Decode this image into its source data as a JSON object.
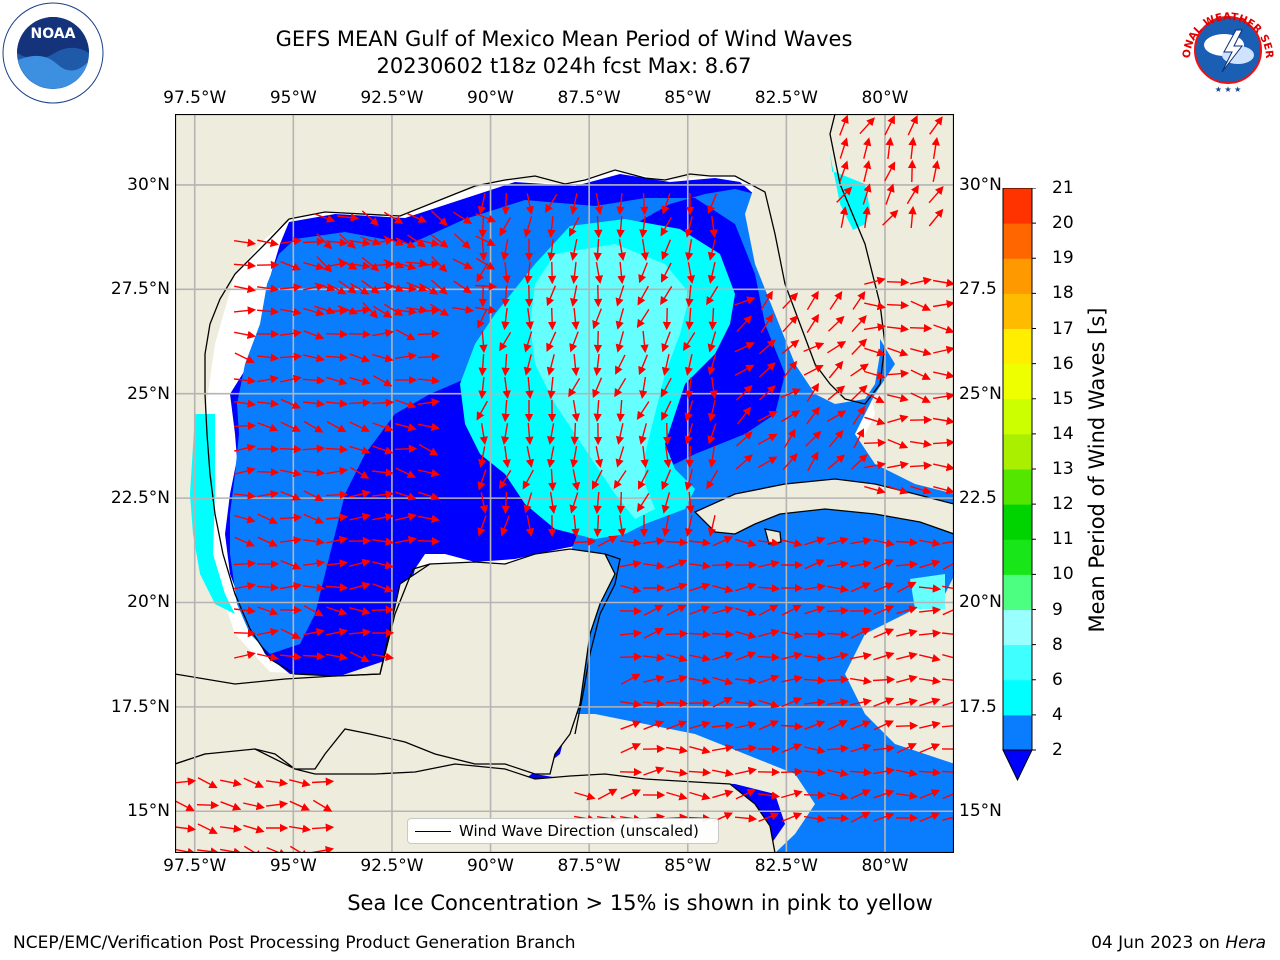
{
  "title_line1": "GEFS MEAN Gulf of Mexico Mean Period of Wind Waves",
  "title_line2": "20230602 t18z 024h fcst   Max: 8.67",
  "map": {
    "lon_ticks": [
      "97.5°W",
      "95°W",
      "92.5°W",
      "90°W",
      "87.5°W",
      "85°W",
      "82.5°W",
      "80°W"
    ],
    "lon_values": [
      -97.5,
      -95,
      -92.5,
      -90,
      -87.5,
      -85,
      -82.5,
      -80
    ],
    "lat_ticks": [
      "30°N",
      "27.5°N",
      "25°N",
      "22.5°N",
      "20°N",
      "17.5°N",
      "15°N"
    ],
    "lat_ticks_right": [
      "30°N",
      "27.5",
      "25°N",
      "22.5",
      "20°N",
      "17.5",
      "15°N"
    ],
    "lat_values": [
      30,
      27.5,
      25,
      22.5,
      20,
      17.5,
      15
    ],
    "extent": {
      "lon_min": -98,
      "lon_max": -78.25,
      "lat_min": 14,
      "lat_max": 31.7
    },
    "legend_label": "Wind Wave Direction (unscaled)",
    "colors": {
      "land": "#eeecdc",
      "arrow": "#ff0000",
      "grid": "#b4b4b4",
      "coast": "#000000",
      "period_2_4": "#0000ff",
      "period_4_6": "#0a7dff",
      "period_6_8": "#00ffff",
      "period_8_9": "#66ffff"
    }
  },
  "colorbar": {
    "label": "Mean Period of Wind Waves [s]",
    "ticks": [
      "2",
      "4",
      "6",
      "8",
      "9",
      "10",
      "11",
      "12",
      "13",
      "14",
      "15",
      "16",
      "17",
      "18",
      "19",
      "20",
      "21"
    ],
    "colors": [
      "#0a7dff",
      "#00ffff",
      "#40ffff",
      "#99ffff",
      "#4dff80",
      "#19e619",
      "#00d400",
      "#55e600",
      "#aaee00",
      "#ccff00",
      "#eeff00",
      "#ffee00",
      "#ffbb00",
      "#ff9900",
      "#ff6600",
      "#ff3300"
    ],
    "extend_color": "#0000ff"
  },
  "sea_ice_note": "Sea Ice Concentration > 15% is shown in pink to yellow",
  "footer_left": "NCEP/EMC/Verification Post Processing Product Generation Branch",
  "footer_right_prefix": "04 Jun 2023 on ",
  "footer_right_host": "Hera",
  "logos": {
    "noaa": "NOAA",
    "nws": "NATIONAL WEATHER SERVICE"
  }
}
